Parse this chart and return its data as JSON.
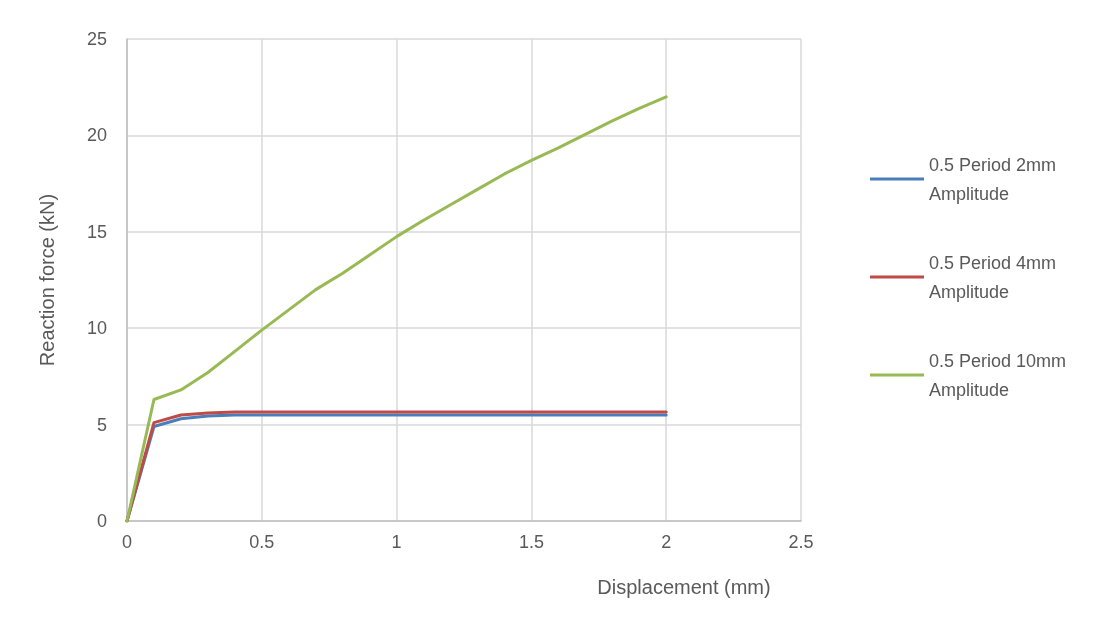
{
  "chart_data": {
    "type": "line",
    "xlabel": "Displacement (mm)",
    "ylabel": "Reaction force (kN)",
    "x": [
      0,
      0.1,
      0.2,
      0.3,
      0.4,
      0.5,
      0.6,
      0.7,
      0.8,
      0.9,
      1.0,
      1.1,
      1.2,
      1.3,
      1.4,
      1.5,
      1.6,
      1.7,
      1.8,
      1.9,
      2.0
    ],
    "series": [
      {
        "name": "0.5 Period 2mm Amplitude",
        "color": "#4a7ebb",
        "values": [
          0,
          4.9,
          5.3,
          5.45,
          5.5,
          5.5,
          5.5,
          5.5,
          5.5,
          5.5,
          5.5,
          5.5,
          5.5,
          5.5,
          5.5,
          5.5,
          5.5,
          5.5,
          5.5,
          5.5,
          5.5
        ]
      },
      {
        "name": "0.5 Period 4mm Amplitude",
        "color": "#be4b48",
        "values": [
          0,
          5.1,
          5.5,
          5.6,
          5.65,
          5.65,
          5.65,
          5.65,
          5.65,
          5.65,
          5.65,
          5.65,
          5.65,
          5.65,
          5.65,
          5.65,
          5.65,
          5.65,
          5.65,
          5.65,
          5.65
        ]
      },
      {
        "name": "0.5 Period 10mm Amplitude",
        "color": "#98b954",
        "values": [
          0,
          6.3,
          6.8,
          7.7,
          8.8,
          9.9,
          10.95,
          12.0,
          12.85,
          13.8,
          14.75,
          15.6,
          16.4,
          17.2,
          18.0,
          18.7,
          19.35,
          20.05,
          20.75,
          21.4,
          22.0
        ]
      }
    ],
    "xlim": [
      0,
      2.5
    ],
    "xticks": [
      0,
      0.5,
      1,
      1.5,
      2,
      2.5
    ],
    "ylim": [
      0,
      25
    ],
    "yticks": [
      0,
      5,
      10,
      15,
      20,
      25
    ],
    "grid": true,
    "legend": "right",
    "marker": "none",
    "line_style": "solid"
  }
}
